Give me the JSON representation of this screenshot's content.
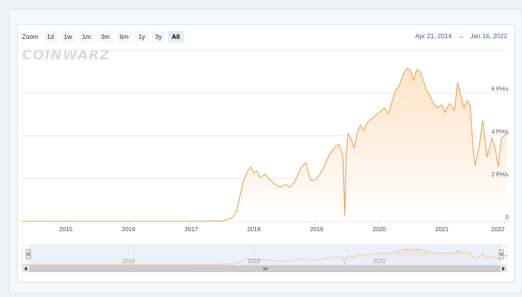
{
  "zoom": {
    "label": "Zoom",
    "buttons": [
      "1d",
      "1w",
      "1m",
      "3m",
      "6m",
      "1y",
      "3y",
      "All"
    ],
    "active": "All"
  },
  "range": {
    "from": "Apr 21, 2014",
    "arrow": "→",
    "to": "Jan 16, 2022"
  },
  "logo_text": "COINWARZ",
  "colors": {
    "line": "#f0a85a",
    "area_top": "#fde3c8",
    "area_bottom": "#ffffff",
    "navigator_mask": "#d7def0",
    "grid": "#e6e6e6"
  },
  "chart_data": {
    "type": "area",
    "title": "",
    "xlabel": "",
    "ylabel": "",
    "x_ticks": [
      "2015",
      "2016",
      "2017",
      "2018",
      "2019",
      "2020",
      "2021",
      "2022"
    ],
    "y_ticks": [
      "0",
      "2 PH/s",
      "4 PH/s",
      "6 PH/s"
    ],
    "ylim": [
      0,
      8.1
    ],
    "xlim": [
      2014.3,
      2022.04
    ],
    "grid": true,
    "navigator_labels": [
      "2016",
      "2018",
      "2020"
    ],
    "series": [
      {
        "name": "",
        "x": [
          2014.3,
          2015.0,
          2016.0,
          2017.0,
          2017.5,
          2017.65,
          2017.72,
          2017.78,
          2017.84,
          2017.9,
          2017.95,
          2018.0,
          2018.05,
          2018.1,
          2018.18,
          2018.25,
          2018.33,
          2018.42,
          2018.5,
          2018.58,
          2018.66,
          2018.75,
          2018.83,
          2018.9,
          2018.95,
          2019.0,
          2019.05,
          2019.12,
          2019.2,
          2019.3,
          2019.36,
          2019.42,
          2019.45,
          2019.47,
          2019.5,
          2019.55,
          2019.6,
          2019.65,
          2019.7,
          2019.75,
          2019.82,
          2019.9,
          2020.0,
          2020.08,
          2020.15,
          2020.25,
          2020.32,
          2020.4,
          2020.45,
          2020.5,
          2020.55,
          2020.6,
          2020.65,
          2020.7,
          2020.75,
          2020.8,
          2020.85,
          2020.92,
          2021.0,
          2021.05,
          2021.12,
          2021.2,
          2021.25,
          2021.3,
          2021.35,
          2021.4,
          2021.45,
          2021.5,
          2021.53,
          2021.6,
          2021.65,
          2021.72,
          2021.8,
          2021.85,
          2021.9,
          2021.95,
          2022.0,
          2022.04
        ],
        "values": [
          0,
          0,
          0,
          0,
          0.02,
          0.15,
          0.45,
          1.2,
          1.9,
          2.35,
          2.55,
          2.25,
          2.35,
          2.05,
          2.2,
          1.95,
          1.75,
          1.6,
          1.72,
          1.6,
          1.9,
          2.5,
          2.75,
          1.95,
          1.9,
          2.0,
          2.2,
          2.55,
          3.1,
          3.5,
          3.6,
          3.05,
          0.25,
          2.9,
          4.1,
          3.85,
          3.4,
          4.15,
          4.5,
          4.25,
          4.65,
          4.85,
          5.1,
          5.3,
          5.05,
          6.05,
          6.35,
          7.0,
          7.15,
          7.05,
          6.6,
          7.1,
          7.0,
          6.65,
          6.1,
          5.95,
          5.6,
          5.3,
          5.45,
          5.1,
          5.5,
          5.2,
          6.5,
          5.9,
          5.3,
          5.65,
          5.45,
          3.3,
          2.6,
          3.6,
          4.75,
          3.0,
          3.9,
          3.4,
          2.55,
          3.9,
          4.0,
          4.1
        ]
      }
    ]
  }
}
